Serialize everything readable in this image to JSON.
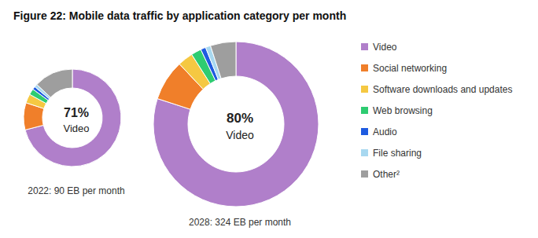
{
  "chart_data": [
    {
      "type": "donut",
      "title": "Figure 22: Mobile data traffic by application category per month",
      "subtitle": "2022: 90 EB per month",
      "annotations": [
        "71%",
        "Video"
      ],
      "categories": [
        "Video",
        "Social networking",
        "Software downloads and updates",
        "Web browsing",
        "Audio",
        "File sharing",
        "Other²"
      ],
      "values": [
        71,
        9,
        3,
        2,
        1,
        1,
        13
      ],
      "colors": [
        "#b07fca",
        "#f07f2a",
        "#f5c842",
        "#2ecc71",
        "#1e5be0",
        "#a8d8f0",
        "#9e9e9e"
      ]
    },
    {
      "type": "donut",
      "subtitle": "2028: 324 EB per month",
      "annotations": [
        "80%",
        "Video"
      ],
      "categories": [
        "Video",
        "Social networking",
        "Software downloads and updates",
        "Web browsing",
        "Audio",
        "File sharing",
        "Other²"
      ],
      "values": [
        80,
        8,
        3,
        2,
        1,
        1,
        5
      ],
      "colors": [
        "#b07fca",
        "#f07f2a",
        "#f5c842",
        "#2ecc71",
        "#1e5be0",
        "#a8d8f0",
        "#9e9e9e"
      ],
      "legend": "right"
    }
  ]
}
